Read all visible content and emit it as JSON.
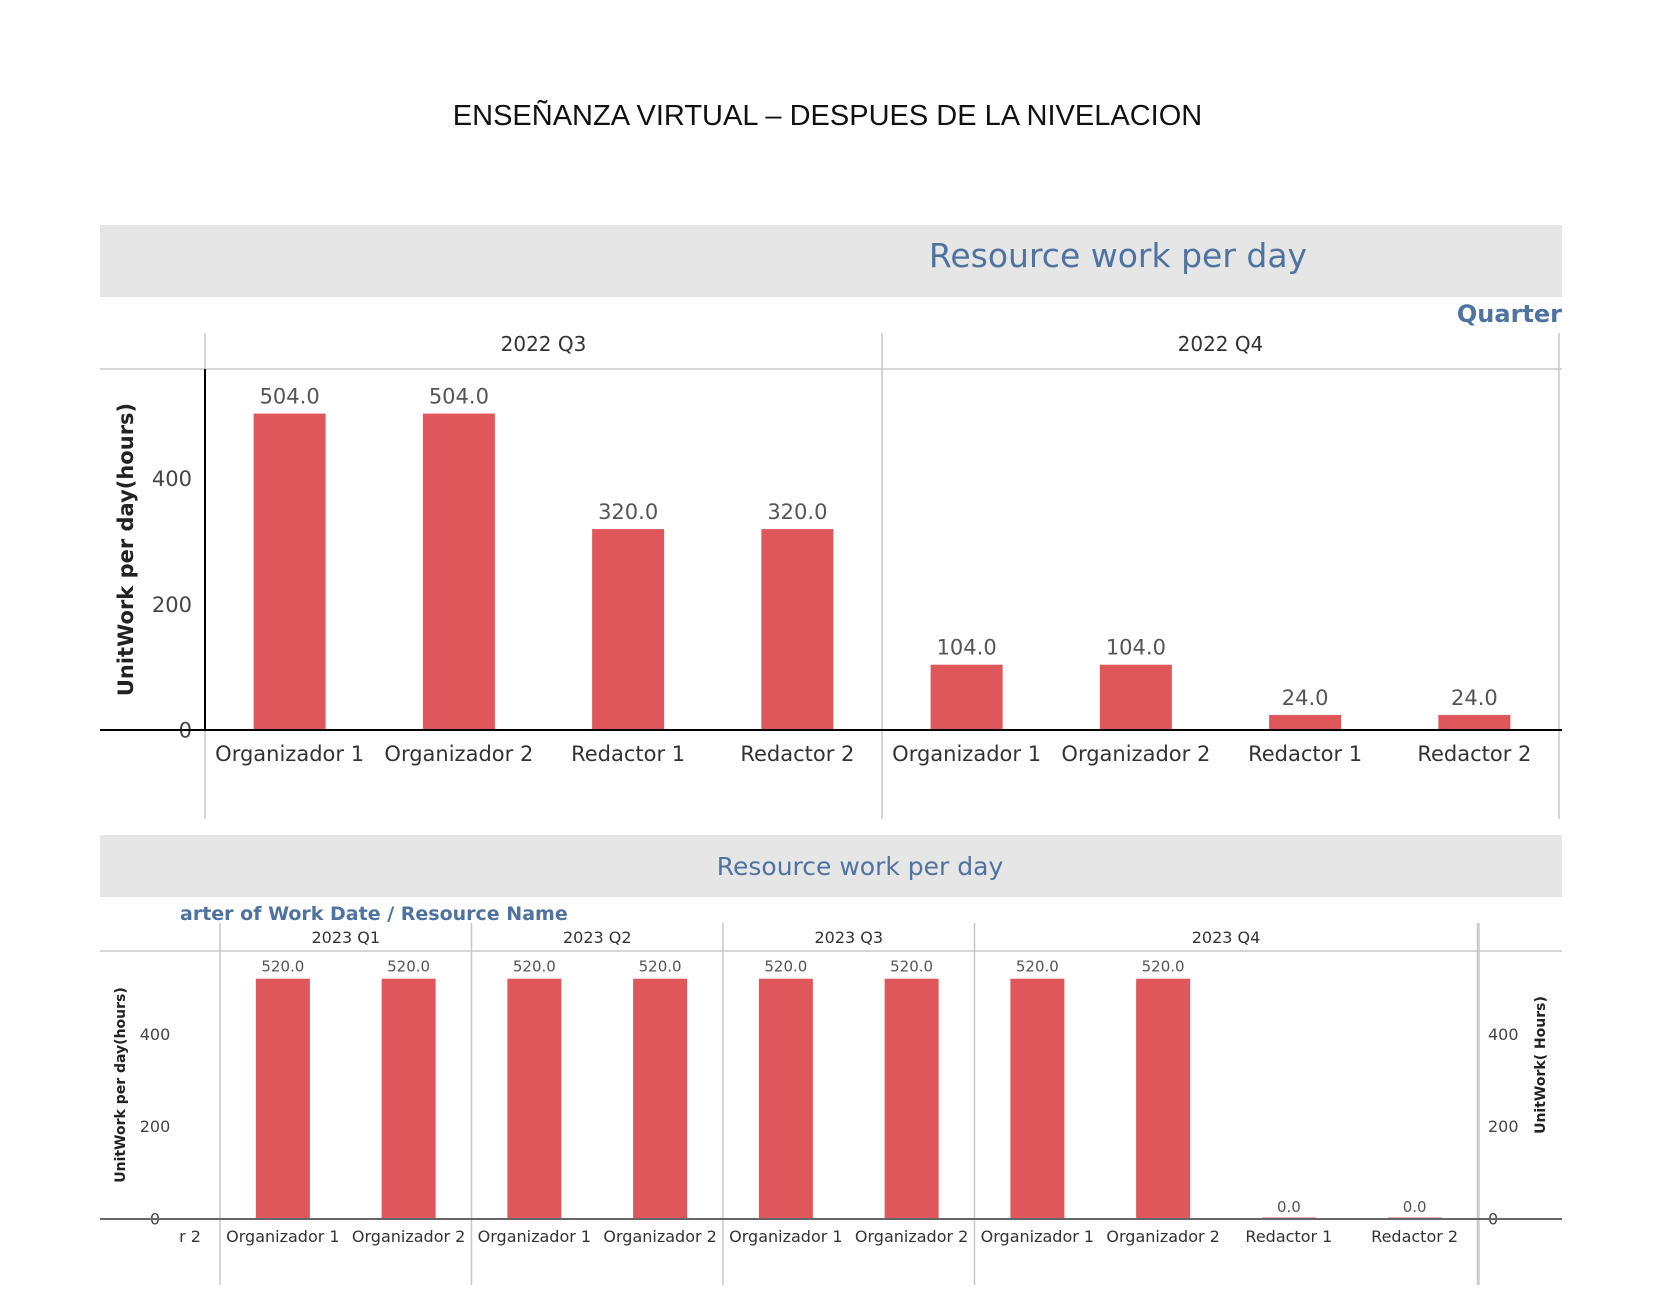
{
  "document": {
    "title": "ENSEÑANZA VIRTUAL – DESPUES DE LA NIVELACION"
  },
  "colors": {
    "bar": "#e0575b",
    "header_bg": "#e6e6e6",
    "title": "#4f73a0"
  },
  "chart_data": [
    {
      "type": "bar",
      "title": "Resource work per day",
      "section_label": "Quarter",
      "ylabel": "UnitWork per day(hours)",
      "ylim": [
        0,
        575
      ],
      "yticks": [
        "0",
        "200",
        "400"
      ],
      "ytick_values": [
        0,
        200,
        400
      ],
      "groups": [
        {
          "period": "2022 Q3",
          "categories": [
            "Organizador 1",
            "Organizador 2",
            "Redactor 1",
            "Redactor 2"
          ],
          "values": [
            504.0,
            504.0,
            320.0,
            320.0
          ],
          "labels": [
            "504.0",
            "504.0",
            "320.0",
            "320.0"
          ]
        },
        {
          "period": "2022 Q4",
          "categories": [
            "Organizador 1",
            "Organizador 2",
            "Redactor 1",
            "Redactor 2"
          ],
          "values": [
            104.0,
            104.0,
            24.0,
            24.0
          ],
          "labels": [
            "104.0",
            "104.0",
            "24.0",
            "24.0"
          ]
        }
      ]
    },
    {
      "type": "bar",
      "title": "Resource work per day",
      "section_label": "arter of Work Date  /  Resource Name",
      "ylabel": "UnitWork per day(hours)",
      "ylabel_right": "UnitWork( Hours)",
      "ylim": [
        0,
        580
      ],
      "yticks": [
        "0",
        "200",
        "400"
      ],
      "ytick_values": [
        0,
        200,
        400
      ],
      "leading_category": "r 2",
      "groups": [
        {
          "period": "2023 Q1",
          "categories": [
            "Organizador 1",
            "Organizador 2"
          ],
          "values": [
            520.0,
            520.0
          ],
          "labels": [
            "520.0",
            "520.0"
          ]
        },
        {
          "period": "2023 Q2",
          "categories": [
            "Organizador 1",
            "Organizador 2"
          ],
          "values": [
            520.0,
            520.0
          ],
          "labels": [
            "520.0",
            "520.0"
          ]
        },
        {
          "period": "2023 Q3",
          "categories": [
            "Organizador 1",
            "Organizador 2"
          ],
          "values": [
            520.0,
            520.0
          ],
          "labels": [
            "520.0",
            "520.0"
          ]
        },
        {
          "period": "2023 Q4",
          "categories": [
            "Organizador 1",
            "Organizador 2",
            "Redactor 1",
            "Redactor 2"
          ],
          "values": [
            520.0,
            520.0,
            0.0,
            0.0
          ],
          "labels": [
            "520.0",
            "520.0",
            "0.0",
            "0.0"
          ]
        }
      ]
    }
  ]
}
